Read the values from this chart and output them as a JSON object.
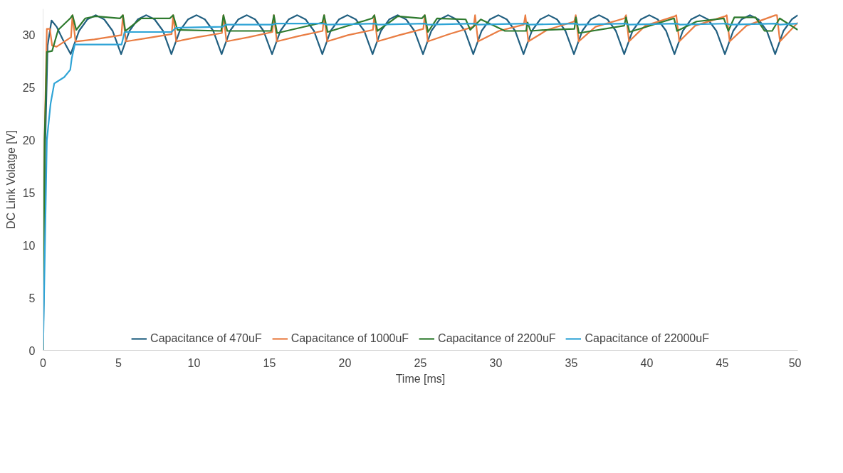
{
  "chart_data": {
    "type": "line",
    "xlabel": "Time [ms]",
    "ylabel": "DC Link Volatge [V]",
    "xlim": [
      0,
      50
    ],
    "ylim": [
      0,
      32.5
    ],
    "xticks": [
      0,
      5,
      10,
      15,
      20,
      25,
      30,
      35,
      40,
      45,
      50
    ],
    "yticks": [
      0,
      5,
      10,
      15,
      20,
      25,
      30
    ],
    "grid": false,
    "legend": "bottom",
    "line_style": "solid",
    "marker": "none",
    "series": [
      {
        "name": "Capacitance of 470uF",
        "color": "#215f80",
        "x": [
          0,
          0.15,
          0.3,
          0.56,
          0.9,
          1.3,
          1.83,
          2.38,
          2.93,
          3.5,
          4.05,
          4.61,
          5.17,
          5.72,
          6.27,
          6.84,
          7.39,
          7.95,
          8.5,
          9.05,
          9.6,
          10.17,
          10.72,
          11.28,
          11.83,
          12.38,
          12.93,
          13.5,
          14.05,
          14.61,
          15.17,
          15.72,
          16.27,
          16.84,
          17.39,
          17.95,
          18.5,
          19.05,
          19.6,
          20.17,
          20.72,
          21.28,
          21.83,
          22.38,
          22.93,
          23.5,
          24.05,
          24.61,
          25.17,
          25.72,
          26.27,
          26.84,
          27.39,
          27.95,
          28.5,
          29.05,
          29.6,
          30.17,
          30.72,
          31.28,
          31.83,
          32.38,
          32.93,
          33.5,
          34.05,
          34.61,
          35.17,
          35.72,
          36.27,
          36.84,
          37.39,
          37.95,
          38.5,
          39.05,
          39.6,
          40.17,
          40.72,
          41.28,
          41.83,
          42.38,
          42.93,
          43.5,
          44.05,
          44.61,
          45.17,
          45.72,
          46.27,
          46.84,
          47.39,
          47.95,
          48.5,
          49.05,
          49.6,
          50
        ],
        "values": [
          0,
          20,
          29,
          31.4,
          30.8,
          29.6,
          28.2,
          30.4,
          31.5,
          31.9,
          31.5,
          30.4,
          28.2,
          30.4,
          31.5,
          31.9,
          31.5,
          30.4,
          28.2,
          30.4,
          31.5,
          31.9,
          31.5,
          30.4,
          28.2,
          30.4,
          31.5,
          31.9,
          31.5,
          30.4,
          28.2,
          30.4,
          31.5,
          31.9,
          31.5,
          30.4,
          28.2,
          30.4,
          31.5,
          31.9,
          31.5,
          30.4,
          28.2,
          30.4,
          31.5,
          31.9,
          31.5,
          30.4,
          28.2,
          30.4,
          31.5,
          31.9,
          31.5,
          30.4,
          28.2,
          30.4,
          31.5,
          31.9,
          31.5,
          30.4,
          28.2,
          30.4,
          31.5,
          31.9,
          31.5,
          30.4,
          28.2,
          30.4,
          31.5,
          31.9,
          31.5,
          30.4,
          28.2,
          30.4,
          31.5,
          31.9,
          31.5,
          30.4,
          28.2,
          30.4,
          31.5,
          31.9,
          31.5,
          30.4,
          28.2,
          30.4,
          31.5,
          31.9,
          31.5,
          30.4,
          28.2,
          30.4,
          31.5,
          31.9
        ]
      },
      {
        "name": "Capacitance of 1000uF",
        "color": "#e97d43",
        "x": [
          0,
          0.1,
          0.25,
          0.45,
          0.6,
          0.9,
          1.85,
          1.95,
          2.15,
          3.4,
          5.19,
          5.29,
          5.49,
          6.8,
          8.52,
          8.62,
          8.82,
          10.2,
          11.85,
          11.95,
          12.15,
          13.6,
          15.19,
          15.29,
          15.49,
          16.9,
          18.52,
          18.62,
          18.82,
          20.2,
          21.85,
          21.95,
          22.15,
          23.6,
          25.19,
          25.29,
          25.49,
          26.9,
          28.52,
          28.62,
          28.82,
          30.2,
          31.85,
          31.95,
          32.15,
          33.4,
          35.19,
          35.29,
          35.49,
          36.6,
          38.52,
          38.62,
          38.82,
          39.9,
          41.85,
          41.95,
          42.15,
          43.2,
          45.19,
          45.29,
          45.49,
          46.6,
          48.52,
          48.62,
          48.82,
          50
        ],
        "values": [
          0,
          20,
          30.6,
          30.6,
          29.0,
          28.9,
          29.8,
          31.9,
          29.4,
          29.6,
          30.0,
          31.9,
          29.4,
          29.7,
          30.1,
          31.9,
          29.4,
          29.8,
          30.2,
          31.9,
          29.4,
          29.8,
          30.3,
          31.9,
          29.4,
          29.9,
          30.4,
          31.9,
          29.4,
          30.0,
          30.5,
          31.9,
          29.4,
          30.0,
          30.6,
          31.9,
          29.4,
          30.1,
          30.8,
          31.9,
          29.4,
          30.4,
          31.0,
          31.9,
          29.4,
          30.5,
          31.3,
          31.9,
          29.4,
          30.8,
          31.6,
          31.9,
          29.4,
          30.9,
          31.8,
          31.9,
          29.4,
          30.9,
          31.8,
          31.9,
          29.4,
          30.9,
          31.9,
          31.9,
          29.4,
          31.2
        ]
      },
      {
        "name": "Capacitance of 2200uF",
        "color": "#2e7a2e",
        "x": [
          0,
          0.1,
          0.25,
          0.6,
          1.0,
          1.8,
          1.95,
          2.2,
          2.8,
          3.5,
          5.1,
          5.29,
          5.45,
          6.5,
          8.4,
          8.62,
          8.9,
          11.8,
          11.95,
          12.2,
          15.1,
          15.29,
          15.5,
          18.5,
          18.62,
          18.85,
          21.8,
          21.95,
          22.15,
          23.5,
          25.1,
          25.29,
          25.5,
          26.1,
          28.0,
          28.3,
          29.0,
          30.6,
          32.0,
          32.1,
          32.3,
          33.3,
          35.2,
          35.3,
          35.5,
          38.5,
          38.62,
          38.85,
          41.8,
          42.0,
          43.3,
          45.1,
          45.4,
          45.8,
          47.2,
          47.8,
          48.3,
          48.8,
          50
        ],
        "values": [
          0,
          20,
          28.4,
          28.5,
          30.5,
          31.6,
          31.9,
          30.5,
          31.6,
          31.8,
          31.6,
          31.9,
          30.4,
          31.6,
          31.6,
          31.9,
          30.5,
          30.4,
          31.9,
          30.4,
          30.4,
          31.9,
          30.2,
          31.2,
          31.9,
          30.3,
          31.6,
          31.9,
          30.4,
          31.8,
          31.6,
          31.9,
          30.3,
          31.6,
          31.5,
          30.5,
          31.5,
          30.4,
          30.4,
          31.2,
          30.4,
          30.5,
          30.6,
          31.7,
          30.2,
          30.9,
          31.7,
          30.3,
          31.6,
          30.4,
          31.3,
          31.6,
          30.4,
          31.7,
          31.7,
          30.4,
          30.4,
          31.6,
          30.5
        ]
      },
      {
        "name": "Capacitance of 22000uF",
        "color": "#2fa4d6",
        "x": [
          0,
          0.25,
          0.5,
          0.74,
          1.4,
          1.8,
          1.9,
          2.1,
          5.2,
          5.4,
          8.5,
          8.8,
          11.9,
          12.1,
          15.2,
          15.4,
          18.6,
          18.8,
          22.0,
          22.2,
          25.3,
          25.5,
          28.6,
          28.8,
          32.0,
          32.2,
          35.3,
          35.5,
          38.6,
          38.8,
          42.0,
          42.2,
          45.3,
          45.5,
          48.6,
          48.8,
          50
        ],
        "values": [
          0,
          20,
          23.5,
          25.4,
          26,
          26.7,
          27.8,
          29.1,
          29.1,
          30.3,
          30.3,
          30.7,
          30.8,
          31.0,
          31.0,
          31.1,
          31.1,
          31.0,
          31.1,
          31.0,
          31.1,
          31.0,
          31.1,
          31.0,
          31.1,
          31.0,
          31.1,
          31.0,
          31.1,
          31.0,
          31.1,
          31.0,
          31.1,
          31.0,
          31.1,
          31.0,
          31.1
        ]
      }
    ]
  }
}
